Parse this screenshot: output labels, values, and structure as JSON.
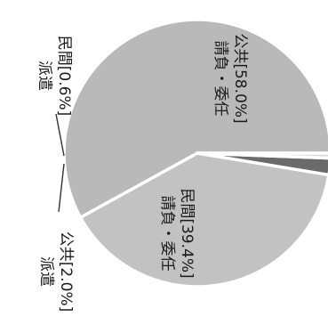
{
  "chart_data": {
    "type": "pie",
    "slices": [
      {
        "line1": "請負・委任",
        "line2": "公共[58.0%]",
        "value": 58.0,
        "color": "#b9b9b9"
      },
      {
        "line1": "請負・委任",
        "line2": "民間[39.4%]",
        "value": 39.4,
        "color": "#c2c2c2"
      },
      {
        "line1": "派遣",
        "line2": "公共[2.0%]",
        "value": 2.0,
        "color": "#6a6a6a"
      },
      {
        "line1": "派遣",
        "line2": "民間[0.6%]",
        "value": 0.6,
        "color": "#dadada"
      }
    ],
    "start_angle_deg": 0,
    "direction": "counterclockwise",
    "text_rotation_deg": 90
  }
}
